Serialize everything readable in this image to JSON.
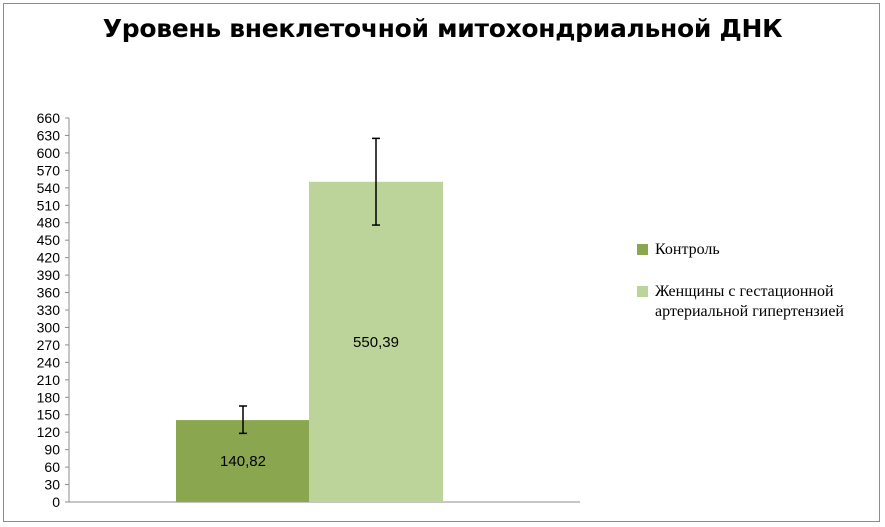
{
  "chart_data": {
    "type": "bar",
    "title": "Уровень внеклеточной митохондриальной ДНК",
    "xlabel": "",
    "ylabel": "",
    "ylim": [
      0,
      660
    ],
    "yticks": [
      0,
      30,
      60,
      90,
      120,
      150,
      180,
      210,
      240,
      270,
      300,
      330,
      360,
      390,
      420,
      450,
      480,
      510,
      540,
      570,
      600,
      630,
      660
    ],
    "grid": false,
    "legend_position": "right",
    "series": [
      {
        "name": "Контроль",
        "value": 140.82,
        "label": "140,82",
        "error_low": 118,
        "error_high": 165,
        "color": "#8aa64e"
      },
      {
        "name": "Женщины с гестационной артериальной гипертензией",
        "value": 550.39,
        "label": "550,39",
        "error_low": 476,
        "error_high": 625,
        "color": "#bcd49a"
      }
    ]
  }
}
